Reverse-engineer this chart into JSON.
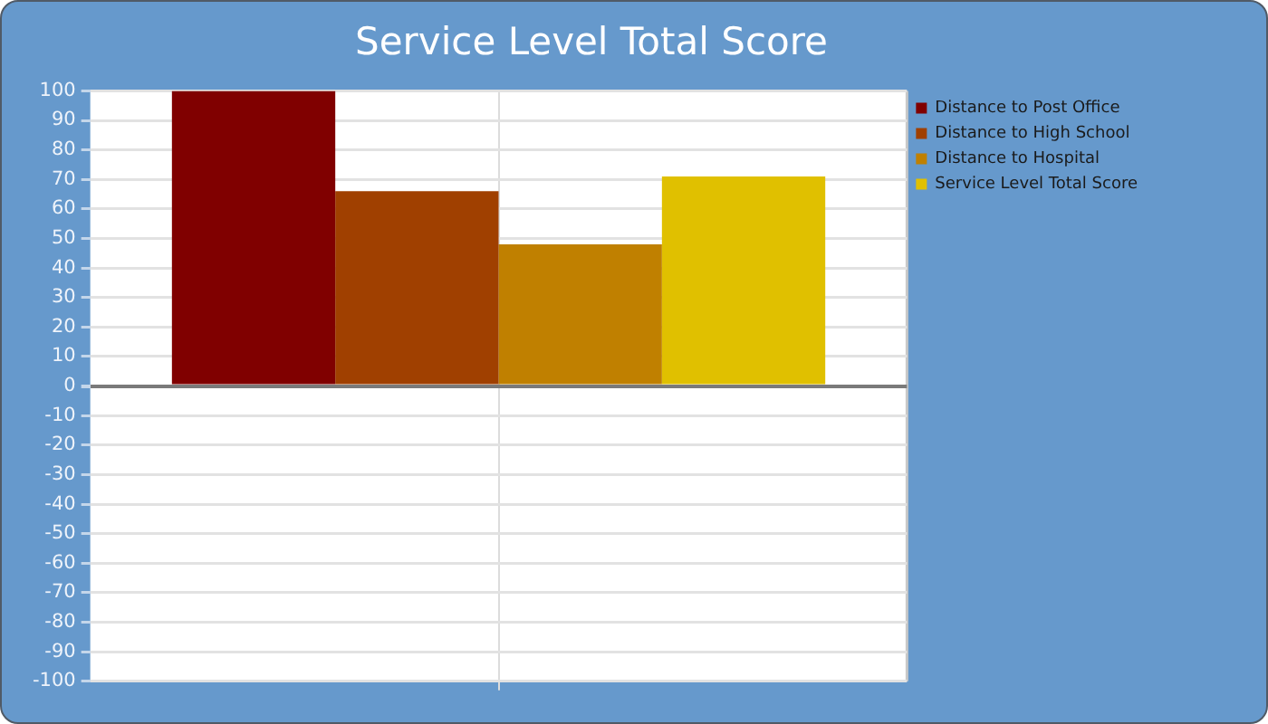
{
  "chart_data": {
    "type": "bar",
    "title": "Service Level Total Score",
    "categories": [
      null
    ],
    "series": [
      {
        "name": "Distance to Post Office",
        "color": "#800000",
        "values": [
          100
        ]
      },
      {
        "name": "Distance to High School",
        "color": "#a04000",
        "values": [
          66
        ]
      },
      {
        "name": "Distance to Hospital",
        "color": "#c08000",
        "values": [
          48
        ]
      },
      {
        "name": "Service Level Total Score",
        "color": "#e0c000",
        "values": [
          71
        ]
      }
    ],
    "ylim": [
      -100,
      100
    ],
    "yticks": [
      -100,
      -90,
      -80,
      -70,
      -60,
      -50,
      -40,
      -30,
      -20,
      -10,
      0,
      10,
      20,
      30,
      40,
      50,
      60,
      70,
      80,
      90,
      100
    ],
    "grid": true,
    "legend": "top right"
  }
}
